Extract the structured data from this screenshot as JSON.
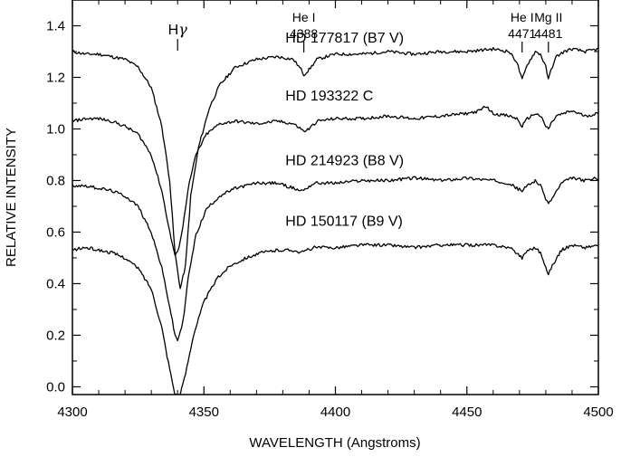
{
  "chart_data": {
    "type": "line",
    "xlabel": "WAVELENGTH (Angstroms)",
    "ylabel": "RELATIVE INTENSITY",
    "xlim": [
      4300,
      4500
    ],
    "ylim": [
      -0.03,
      1.5
    ],
    "grid": false,
    "x_ticks": [
      4300,
      4350,
      4400,
      4450,
      4500
    ],
    "x_tick_labels": [
      "4300",
      "4350",
      "4400",
      "4450",
      "4500"
    ],
    "y_ticks": [
      0.0,
      0.2,
      0.4,
      0.6,
      0.8,
      1.0,
      1.2,
      1.4
    ],
    "y_tick_labels": [
      "0.0",
      "0.2",
      "0.4",
      "0.6",
      "0.8",
      "1.0",
      "1.2",
      "1.4"
    ],
    "line_markers": [
      {
        "label": "Hγ",
        "label_parts": [
          "H",
          "γ"
        ],
        "wavelength": 4340
      },
      {
        "label": "He I",
        "sublabel": "4388",
        "wavelength": 4388
      },
      {
        "label": "He I",
        "sublabel": "4471",
        "wavelength": 4471
      },
      {
        "label": "Mg II",
        "sublabel": "4481",
        "wavelength": 4481
      }
    ],
    "series": [
      {
        "name": "HD 177817 (B7 V)",
        "label_at": [
          4381,
          1.335
        ],
        "x": [
          4300,
          4305,
          4310,
          4315,
          4320,
          4325,
          4330,
          4334,
          4337,
          4339,
          4341,
          4343,
          4345,
          4348,
          4352,
          4356,
          4362,
          4370,
          4378,
          4384,
          4387,
          4388,
          4390,
          4393,
          4400,
          4410,
          4420,
          4430,
          4440,
          4450,
          4460,
          4466,
          4469,
          4471,
          4473,
          4476,
          4478,
          4480,
          4481,
          4482,
          4484,
          4487,
          4490,
          4495,
          4500
        ],
        "values": [
          1.3,
          1.29,
          1.29,
          1.28,
          1.27,
          1.24,
          1.16,
          1.01,
          0.8,
          0.52,
          0.38,
          0.47,
          0.74,
          0.93,
          1.08,
          1.17,
          1.24,
          1.27,
          1.28,
          1.27,
          1.23,
          1.21,
          1.23,
          1.27,
          1.29,
          1.29,
          1.3,
          1.29,
          1.3,
          1.3,
          1.31,
          1.3,
          1.26,
          1.19,
          1.25,
          1.3,
          1.29,
          1.24,
          1.19,
          1.23,
          1.28,
          1.3,
          1.31,
          1.3,
          1.31
        ]
      },
      {
        "name": "HD 193322 C",
        "label_at": [
          4381,
          1.11
        ],
        "x": [
          4300,
          4305,
          4310,
          4315,
          4320,
          4325,
          4330,
          4334,
          4337,
          4339,
          4340,
          4342,
          4344,
          4347,
          4351,
          4356,
          4362,
          4370,
          4378,
          4384,
          4387,
          4388,
          4390,
          4393,
          4400,
          4410,
          4420,
          4430,
          4440,
          4450,
          4455,
          4457,
          4460,
          4466,
          4469,
          4471,
          4473,
          4476,
          4478,
          4480,
          4481,
          4482,
          4484,
          4487,
          4490,
          4495,
          4500
        ],
        "values": [
          1.03,
          1.04,
          1.04,
          1.03,
          1.01,
          0.98,
          0.9,
          0.76,
          0.6,
          0.51,
          0.52,
          0.62,
          0.77,
          0.9,
          0.98,
          1.02,
          1.03,
          1.02,
          1.03,
          1.02,
          1.0,
          0.99,
          1.0,
          1.03,
          1.04,
          1.04,
          1.05,
          1.04,
          1.05,
          1.06,
          1.07,
          1.09,
          1.06,
          1.05,
          1.04,
          1.01,
          1.04,
          1.06,
          1.05,
          1.01,
          1.0,
          1.02,
          1.05,
          1.06,
          1.07,
          1.05,
          1.06
        ]
      },
      {
        "name": "HD 214923 (B8 V)",
        "label_at": [
          4381,
          0.86
        ],
        "x": [
          4300,
          4305,
          4310,
          4315,
          4320,
          4325,
          4330,
          4334,
          4337,
          4339,
          4340,
          4342,
          4344,
          4347,
          4351,
          4356,
          4362,
          4370,
          4378,
          4384,
          4387,
          4389,
          4392,
          4400,
          4410,
          4420,
          4430,
          4440,
          4450,
          4460,
          4466,
          4469,
          4471,
          4473,
          4476,
          4478,
          4480,
          4481,
          4483,
          4486,
          4490,
          4495,
          4500
        ],
        "values": [
          0.78,
          0.78,
          0.77,
          0.76,
          0.74,
          0.7,
          0.6,
          0.46,
          0.31,
          0.2,
          0.18,
          0.25,
          0.42,
          0.59,
          0.69,
          0.74,
          0.77,
          0.79,
          0.79,
          0.77,
          0.76,
          0.77,
          0.79,
          0.79,
          0.8,
          0.8,
          0.81,
          0.8,
          0.81,
          0.8,
          0.79,
          0.77,
          0.76,
          0.78,
          0.8,
          0.78,
          0.73,
          0.71,
          0.74,
          0.79,
          0.81,
          0.8,
          0.81
        ]
      },
      {
        "name": "HD 150117 (B9 V)",
        "label_at": [
          4381,
          0.625
        ],
        "x": [
          4300,
          4305,
          4310,
          4315,
          4320,
          4325,
          4330,
          4334,
          4336,
          4338,
          4339,
          4341,
          4343,
          4346,
          4350,
          4355,
          4360,
          4366,
          4372,
          4378,
          4384,
          4387,
          4389,
          4392,
          4400,
          4410,
          4420,
          4430,
          4440,
          4450,
          4460,
          4466,
          4469,
          4471,
          4473,
          4476,
          4478,
          4480,
          4481,
          4483,
          4486,
          4490,
          4495,
          4500
        ],
        "values": [
          0.53,
          0.54,
          0.53,
          0.52,
          0.5,
          0.46,
          0.38,
          0.23,
          0.12,
          0.02,
          -0.03,
          -0.03,
          0.05,
          0.2,
          0.33,
          0.42,
          0.47,
          0.5,
          0.52,
          0.53,
          0.53,
          0.52,
          0.53,
          0.54,
          0.54,
          0.55,
          0.55,
          0.54,
          0.55,
          0.55,
          0.55,
          0.54,
          0.52,
          0.5,
          0.53,
          0.54,
          0.52,
          0.46,
          0.44,
          0.48,
          0.53,
          0.55,
          0.54,
          0.55
        ]
      }
    ]
  }
}
